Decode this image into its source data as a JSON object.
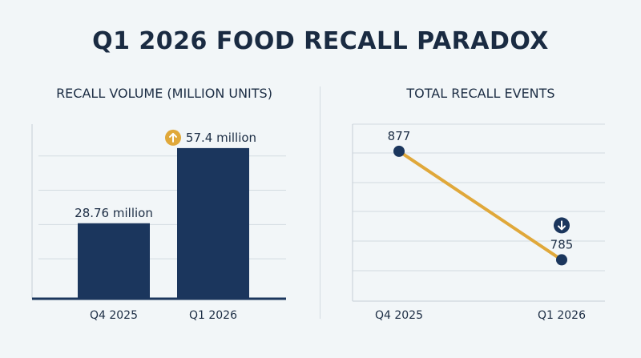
{
  "title": "Q1 2026 FOOD RECALL PARADOX",
  "colors": {
    "navy": "#1b365d",
    "gold": "#e0a83a",
    "grid": "#d3dbe1",
    "background": "#f2f6f8"
  },
  "chart_data": [
    {
      "type": "bar",
      "title": "RECALL VOLUME (MILLION UNITS)",
      "categories": [
        "Q4 2025",
        "Q1 2026"
      ],
      "values": [
        28.76,
        57.4
      ],
      "data_labels": [
        "28.76 million",
        "57.4 million"
      ],
      "ylim": [
        0,
        65
      ],
      "grid": true,
      "annotation": {
        "index": 1,
        "icon": "arrow-up-icon",
        "color": "#e0a83a"
      }
    },
    {
      "type": "line",
      "title": "TOTAL RECALL EVENTS",
      "categories": [
        "Q4 2025",
        "Q1 2026"
      ],
      "values": [
        877,
        785
      ],
      "data_labels": [
        "877",
        "785"
      ],
      "ylim": [
        750,
        900
      ],
      "grid": true,
      "annotation": {
        "index": 1,
        "icon": "arrow-down-icon",
        "color": "#1b365d"
      }
    }
  ]
}
